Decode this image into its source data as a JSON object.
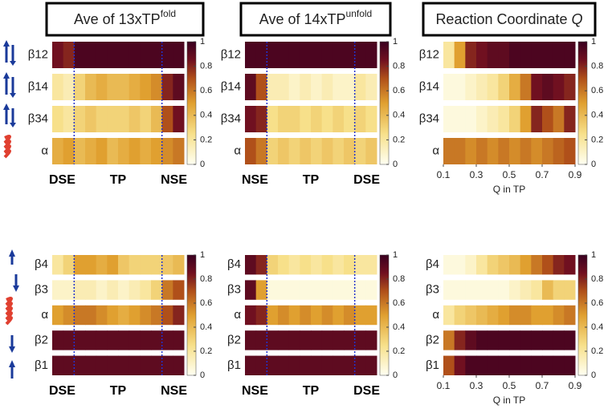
{
  "chart_data": [
    {
      "type": "heatmap",
      "title": "Ave of 13xTP",
      "title_sup": "fold",
      "clim": [
        0,
        1
      ],
      "cticks": [
        0,
        0.2,
        0.4,
        0.6,
        0.8,
        1
      ],
      "regions": [
        {
          "label": "DSE",
          "columns": 2
        },
        {
          "label": "TP",
          "columns": 8
        },
        {
          "label": "NSE",
          "columns": 2
        }
      ],
      "rows": [
        {
          "name": "β12",
          "values": [
            0.85,
            0.8,
            0.95,
            0.95,
            0.95,
            0.95,
            0.95,
            0.95,
            0.95,
            0.95,
            0.95,
            0.95
          ]
        },
        {
          "name": "β14",
          "values": [
            0.2,
            0.15,
            0.3,
            0.4,
            0.45,
            0.4,
            0.4,
            0.45,
            0.5,
            0.55,
            0.8,
            0.9
          ]
        },
        {
          "name": "β34",
          "values": [
            0.25,
            0.2,
            0.3,
            0.35,
            0.3,
            0.3,
            0.3,
            0.35,
            0.3,
            0.4,
            0.7,
            0.85
          ]
        },
        {
          "name": "α",
          "values": [
            0.45,
            0.5,
            0.4,
            0.45,
            0.5,
            0.4,
            0.45,
            0.5,
            0.45,
            0.5,
            0.55,
            0.6
          ]
        }
      ]
    },
    {
      "type": "heatmap",
      "title": "Ave of 14xTP",
      "title_sup": "unfold",
      "clim": [
        0,
        1
      ],
      "cticks": [
        0,
        0.2,
        0.4,
        0.6,
        0.8,
        1
      ],
      "regions": [
        {
          "label": "NSE",
          "columns": 2
        },
        {
          "label": "TP",
          "columns": 8
        },
        {
          "label": "DSE",
          "columns": 2
        }
      ],
      "rows": [
        {
          "name": "β12",
          "values": [
            0.95,
            0.95,
            0.95,
            0.95,
            0.95,
            0.95,
            0.95,
            0.95,
            0.95,
            0.95,
            0.95,
            0.95
          ]
        },
        {
          "name": "β14",
          "values": [
            0.9,
            0.7,
            0.15,
            0.15,
            0.1,
            0.15,
            0.1,
            0.15,
            0.1,
            0.1,
            0.2,
            0.15
          ]
        },
        {
          "name": "β34",
          "values": [
            0.85,
            0.8,
            0.25,
            0.3,
            0.3,
            0.25,
            0.3,
            0.25,
            0.3,
            0.25,
            0.3,
            0.25
          ]
        },
        {
          "name": "α",
          "values": [
            0.7,
            0.6,
            0.3,
            0.35,
            0.3,
            0.35,
            0.3,
            0.35,
            0.3,
            0.35,
            0.3,
            0.35
          ]
        }
      ]
    },
    {
      "type": "heatmap",
      "title": "Reaction Coordinate ",
      "title_italic": "Q",
      "clim": [
        0,
        1
      ],
      "cticks": [
        0,
        0.2,
        0.4,
        0.6,
        0.8,
        1
      ],
      "xlim": [
        0.1,
        0.9
      ],
      "xticks": [
        0.1,
        0.3,
        0.5,
        0.7,
        0.9
      ],
      "xlabel": "Q in TP",
      "rows": [
        {
          "name": "β12",
          "values": [
            0.2,
            0.5,
            0.8,
            0.85,
            0.9,
            0.9,
            0.95,
            0.95,
            0.95,
            0.95,
            0.95,
            0.95
          ]
        },
        {
          "name": "β14",
          "values": [
            0.05,
            0.05,
            0.1,
            0.15,
            0.2,
            0.3,
            0.45,
            0.6,
            0.85,
            0.9,
            0.85,
            0.8
          ]
        },
        {
          "name": "β34",
          "values": [
            0.05,
            0.05,
            0.05,
            0.1,
            0.15,
            0.2,
            0.3,
            0.5,
            0.8,
            0.7,
            0.6,
            0.8
          ]
        },
        {
          "name": "α",
          "values": [
            0.6,
            0.6,
            0.55,
            0.6,
            0.55,
            0.6,
            0.55,
            0.6,
            0.55,
            0.6,
            0.65,
            0.7
          ]
        }
      ]
    },
    {
      "type": "heatmap",
      "clim": [
        0,
        1
      ],
      "cticks": [
        0,
        0.2,
        0.4,
        0.6,
        0.8,
        1
      ],
      "regions": [
        {
          "label": "DSE",
          "columns": 2
        },
        {
          "label": "TP",
          "columns": 8
        },
        {
          "label": "NSE",
          "columns": 2
        }
      ],
      "rows": [
        {
          "name": "β4",
          "values": [
            0.2,
            0.3,
            0.5,
            0.5,
            0.45,
            0.5,
            0.35,
            0.3,
            0.3,
            0.3,
            0.35,
            0.4
          ]
        },
        {
          "name": "β3",
          "values": [
            0.1,
            0.1,
            0.15,
            0.15,
            0.1,
            0.15,
            0.1,
            0.15,
            0.2,
            0.3,
            0.6,
            0.7
          ]
        },
        {
          "name": "α",
          "values": [
            0.5,
            0.55,
            0.6,
            0.6,
            0.55,
            0.5,
            0.45,
            0.5,
            0.55,
            0.6,
            0.7,
            0.8
          ]
        },
        {
          "name": "β2",
          "values": [
            0.9,
            0.9,
            0.9,
            0.9,
            0.9,
            0.9,
            0.9,
            0.9,
            0.9,
            0.9,
            0.9,
            0.9
          ]
        },
        {
          "name": "β1",
          "values": [
            0.9,
            0.9,
            0.9,
            0.9,
            0.9,
            0.9,
            0.9,
            0.9,
            0.9,
            0.9,
            0.9,
            0.9
          ]
        }
      ]
    },
    {
      "type": "heatmap",
      "clim": [
        0,
        1
      ],
      "cticks": [
        0,
        0.2,
        0.4,
        0.6,
        0.8,
        1
      ],
      "regions": [
        {
          "label": "NSE",
          "columns": 2
        },
        {
          "label": "TP",
          "columns": 8
        },
        {
          "label": "DSE",
          "columns": 2
        }
      ],
      "rows": [
        {
          "name": "β4",
          "values": [
            0.9,
            0.8,
            0.3,
            0.25,
            0.2,
            0.25,
            0.2,
            0.25,
            0.2,
            0.25,
            0.2,
            0.2
          ]
        },
        {
          "name": "β3",
          "values": [
            0.9,
            0.5,
            0.05,
            0.05,
            0.05,
            0.05,
            0.05,
            0.05,
            0.05,
            0.05,
            0.05,
            0.05
          ]
        },
        {
          "name": "α",
          "values": [
            0.85,
            0.8,
            0.5,
            0.55,
            0.5,
            0.55,
            0.5,
            0.55,
            0.5,
            0.55,
            0.5,
            0.5
          ]
        },
        {
          "name": "β2",
          "values": [
            0.9,
            0.9,
            0.9,
            0.9,
            0.9,
            0.9,
            0.9,
            0.9,
            0.9,
            0.9,
            0.9,
            0.9
          ]
        },
        {
          "name": "β1",
          "values": [
            0.9,
            0.9,
            0.9,
            0.9,
            0.9,
            0.9,
            0.9,
            0.9,
            0.9,
            0.9,
            0.9,
            0.9
          ]
        }
      ]
    },
    {
      "type": "heatmap",
      "clim": [
        0,
        1
      ],
      "cticks": [
        0,
        0.2,
        0.4,
        0.6,
        0.8,
        1
      ],
      "xlim": [
        0.1,
        0.9
      ],
      "xticks": [
        0.1,
        0.3,
        0.5,
        0.7,
        0.9
      ],
      "xlabel": "Q in TP",
      "rows": [
        {
          "name": "β4",
          "values": [
            0.05,
            0.05,
            0.1,
            0.2,
            0.3,
            0.35,
            0.4,
            0.5,
            0.6,
            0.7,
            0.8,
            0.85
          ]
        },
        {
          "name": "β3",
          "values": [
            0.05,
            0.05,
            0.05,
            0.05,
            0.05,
            0.05,
            0.1,
            0.15,
            0.2,
            0.4,
            0.3,
            0.3
          ]
        },
        {
          "name": "α",
          "values": [
            0.2,
            0.3,
            0.35,
            0.4,
            0.45,
            0.5,
            0.55,
            0.55,
            0.5,
            0.5,
            0.55,
            0.6
          ]
        },
        {
          "name": "β2",
          "values": [
            0.6,
            0.8,
            0.9,
            0.95,
            0.95,
            0.95,
            0.95,
            0.95,
            0.95,
            0.95,
            0.95,
            0.95
          ]
        },
        {
          "name": "β1",
          "values": [
            0.7,
            0.85,
            0.95,
            0.95,
            0.95,
            0.95,
            0.95,
            0.95,
            0.95,
            0.95,
            0.95,
            0.95
          ]
        }
      ]
    }
  ]
}
